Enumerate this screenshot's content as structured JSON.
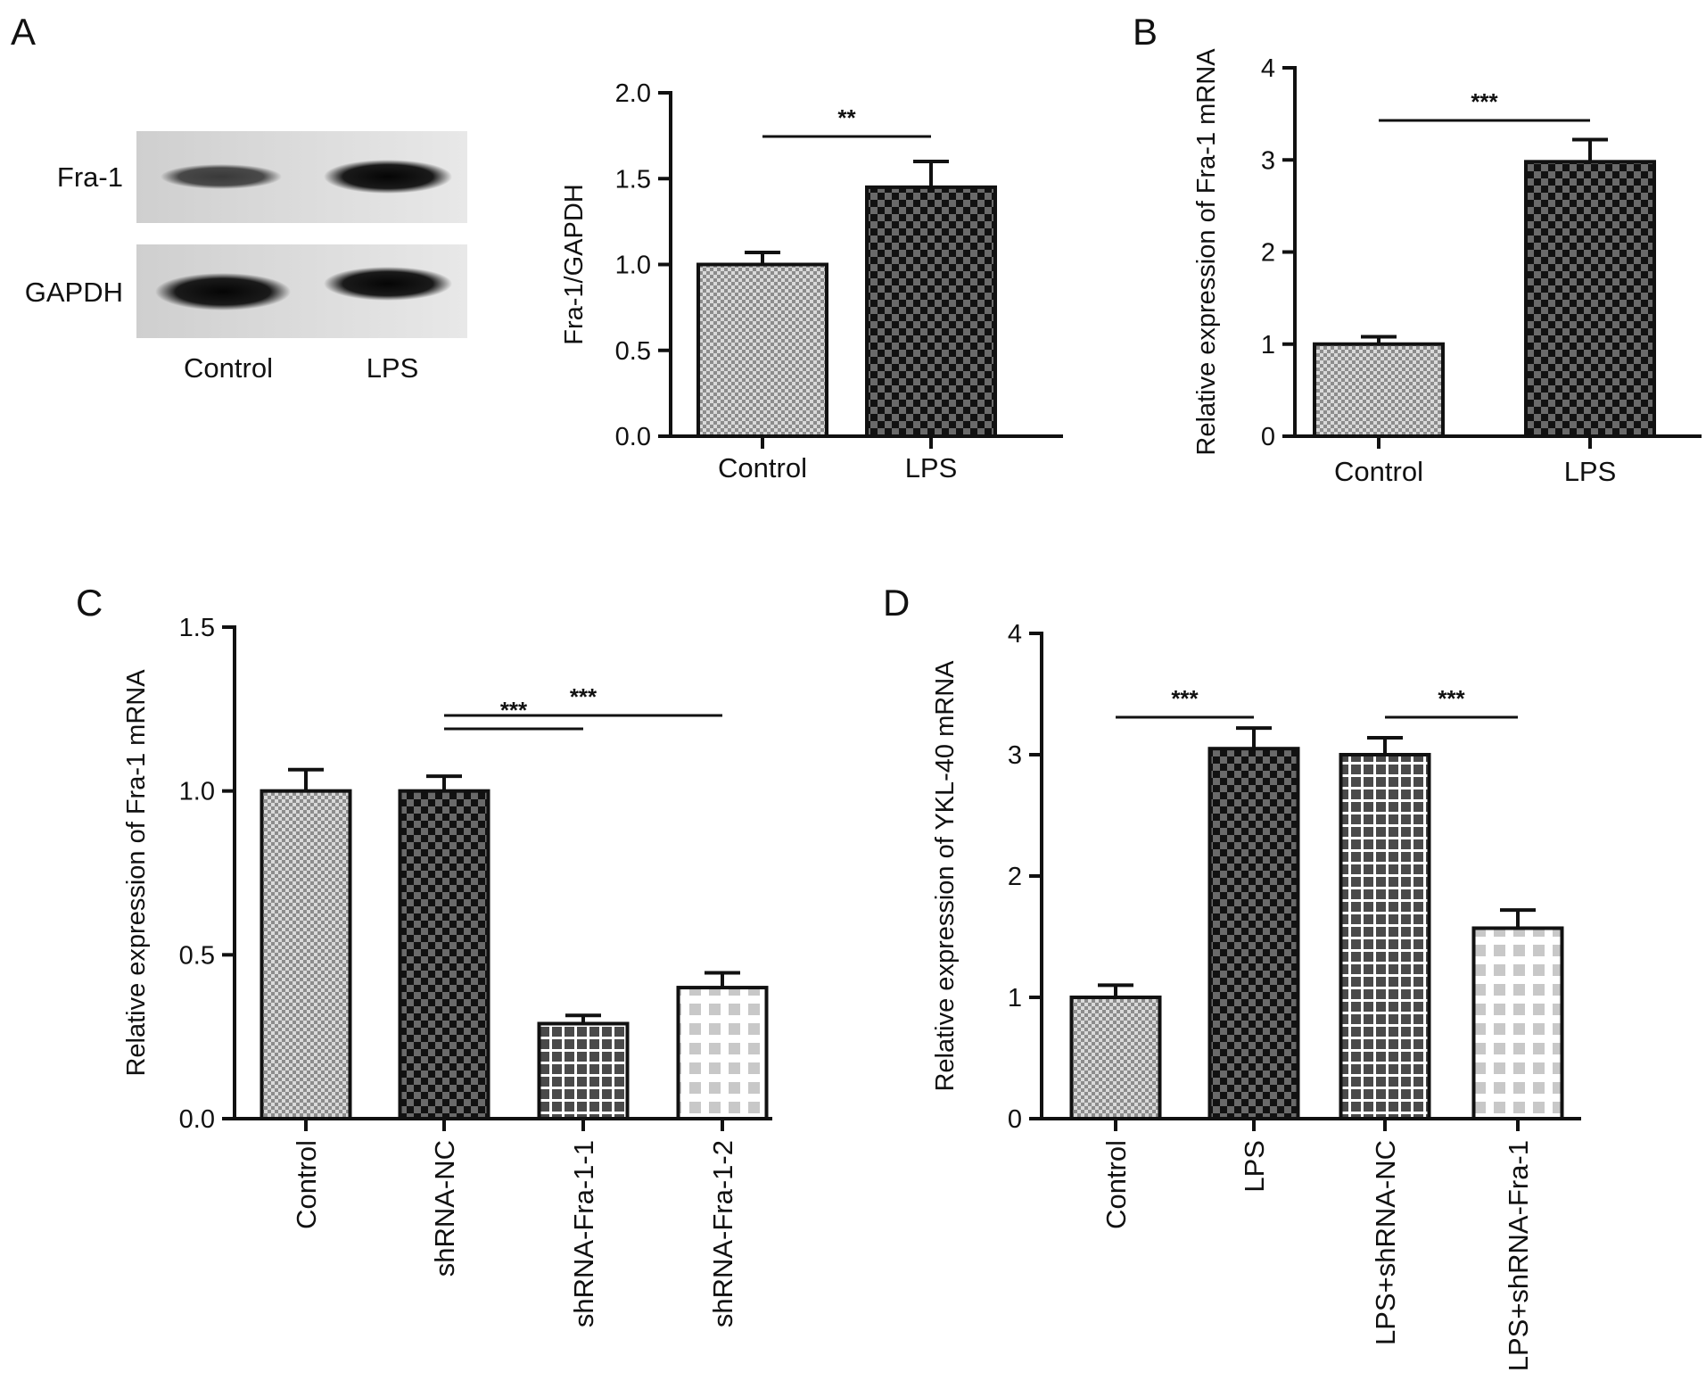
{
  "panels": [
    "A",
    "B",
    "C",
    "D"
  ],
  "colors": {
    "axis": "#111111",
    "bar_stroke": "#111111",
    "checker_light": "#9a9a9a",
    "checker_dark": "#1a1a1a",
    "grid_fill": "#555555",
    "dashed_fill": "#c8c8c8"
  },
  "blot": {
    "rows": [
      "Fra-1",
      "GAPDH"
    ],
    "lanes": [
      "Control",
      "LPS"
    ],
    "band_intensity": [
      [
        0.55,
        0.95
      ],
      [
        0.95,
        0.9
      ]
    ]
  },
  "chart_data": [
    {
      "panel": "A",
      "type": "bar",
      "categories": [
        "Control",
        "LPS"
      ],
      "values": [
        1.0,
        1.45
      ],
      "errors": [
        0.07,
        0.15
      ],
      "patterns": [
        "checker-light",
        "checker-dark"
      ],
      "ylabel": "Fra-1/GAPDH",
      "ylim": [
        0,
        2.0
      ],
      "yticks": [
        0.0,
        0.5,
        1.0,
        1.5,
        2.0
      ],
      "ytick_labels": [
        "0.0",
        "0.5",
        "1.0",
        "1.5",
        "2.0"
      ],
      "xlabel_rotation": 0,
      "significance": [
        {
          "from": 0,
          "to": 1,
          "label": "**"
        }
      ]
    },
    {
      "panel": "B",
      "type": "bar",
      "categories": [
        "Control",
        "LPS"
      ],
      "values": [
        1.0,
        2.98
      ],
      "errors": [
        0.08,
        0.24
      ],
      "patterns": [
        "checker-light",
        "checker-dark"
      ],
      "ylabel": "Relative expression of Fra-1 mRNA",
      "ylim": [
        0,
        4
      ],
      "yticks": [
        0,
        1,
        2,
        3,
        4
      ],
      "ytick_labels": [
        "0",
        "1",
        "2",
        "3",
        "4"
      ],
      "xlabel_rotation": 0,
      "significance": [
        {
          "from": 0,
          "to": 1,
          "label": "***"
        }
      ]
    },
    {
      "panel": "C",
      "type": "bar",
      "categories": [
        "Control",
        "shRNA-NC",
        "shRNA-Fra-1-1",
        "shRNA-Fra-1-2"
      ],
      "values": [
        1.0,
        1.0,
        0.29,
        0.4
      ],
      "errors": [
        0.065,
        0.045,
        0.025,
        0.045
      ],
      "patterns": [
        "checker-light",
        "checker-dark",
        "grid",
        "dashed"
      ],
      "ylabel": "Relative expression of Fra-1 mRNA",
      "ylim": [
        0,
        1.5
      ],
      "yticks": [
        0.0,
        0.5,
        1.0,
        1.5
      ],
      "ytick_labels": [
        "0.0",
        "0.5",
        "1.0",
        "1.5"
      ],
      "xlabel_rotation": -90,
      "significance": [
        {
          "from": 1,
          "to": 2,
          "label": "***"
        },
        {
          "from": 1,
          "to": 3,
          "label": "***"
        }
      ]
    },
    {
      "panel": "D",
      "type": "bar",
      "categories": [
        "Control",
        "LPS",
        "LPS+shRNA-NC",
        "LPS+shRNA-Fra-1"
      ],
      "values": [
        1.0,
        3.05,
        3.0,
        1.57
      ],
      "errors": [
        0.1,
        0.17,
        0.14,
        0.15
      ],
      "patterns": [
        "checker-light",
        "checker-dark",
        "grid",
        "dashed"
      ],
      "ylabel": "Relative expression of YKL-40 mRNA",
      "ylim": [
        0,
        4
      ],
      "yticks": [
        0,
        1,
        2,
        3,
        4
      ],
      "ytick_labels": [
        "0",
        "1",
        "2",
        "3",
        "4"
      ],
      "xlabel_rotation": -90,
      "significance": [
        {
          "from": 0,
          "to": 1,
          "label": "***"
        },
        {
          "from": 2,
          "to": 3,
          "label": "***"
        }
      ]
    }
  ]
}
